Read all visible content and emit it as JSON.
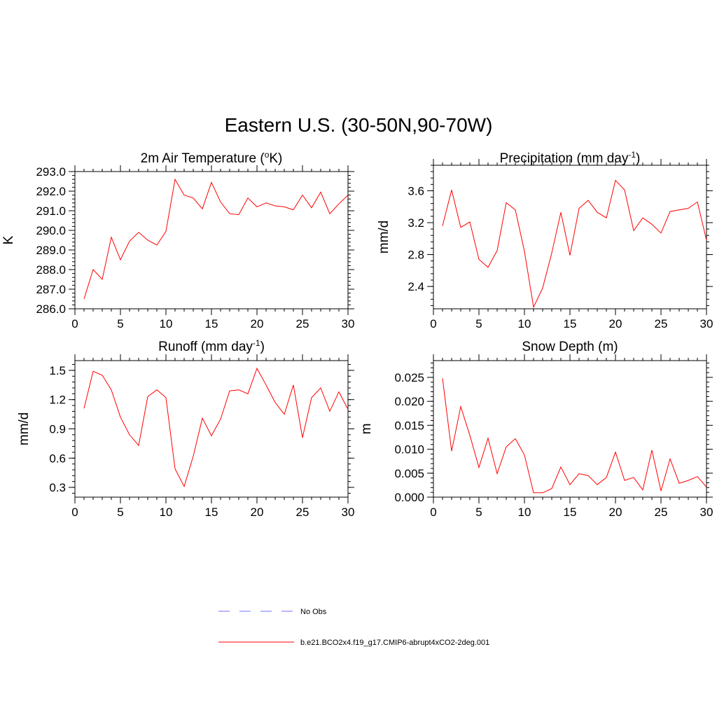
{
  "title": "Eastern U.S. (30-50N,90-70W)",
  "colors": {
    "model": "#ff0000",
    "obs": "#a0a0ff",
    "axis": "#000000"
  },
  "legend": {
    "entries": [
      {
        "label": "No Obs",
        "style": "dashed",
        "color": "#a0a0ff"
      },
      {
        "label": "b.e21.BCO2x4.f19_g17.CMIP6-abrupt4xCO2-2deg.001",
        "style": "solid",
        "color": "#ff0000"
      }
    ]
  },
  "chart_data": [
    {
      "type": "line",
      "title": "2m Air Temperature (°K)",
      "title_parts": {
        "pre": "2m Air Temperature (",
        "sup": "o",
        "post": "K)"
      },
      "ylabel": "K",
      "xlim": [
        0,
        30
      ],
      "ylim": [
        286,
        293
      ],
      "xticks": [
        0,
        5,
        10,
        15,
        20,
        25,
        30
      ],
      "yticks": [
        286,
        287,
        288,
        289,
        290,
        291,
        292,
        293
      ],
      "ytick_labels": [
        "286.0",
        "287.0",
        "288.0",
        "289.0",
        "290.0",
        "291.0",
        "292.0",
        "293.0"
      ],
      "series": [
        {
          "x": [
            1,
            2,
            3,
            4,
            5,
            6,
            7,
            8,
            9,
            10,
            11,
            12,
            13,
            14,
            15,
            16,
            17,
            18,
            19,
            20,
            21,
            22,
            23,
            24,
            25,
            26,
            27,
            28,
            29,
            30
          ],
          "values": [
            286.5,
            288.0,
            287.5,
            289.65,
            288.5,
            289.45,
            289.9,
            289.5,
            289.25,
            289.95,
            292.6,
            291.8,
            291.65,
            291.1,
            292.45,
            291.45,
            290.85,
            290.8,
            291.65,
            291.2,
            291.4,
            291.25,
            291.2,
            291.05,
            291.8,
            291.15,
            291.95,
            290.85,
            291.35,
            291.8
          ]
        }
      ]
    },
    {
      "type": "line",
      "title": "Precipitation (mm day-1)",
      "title_parts": {
        "pre": "Precipitation (mm day",
        "sup": "-1",
        "post": ")"
      },
      "ylabel": "mm/d",
      "xlim": [
        0,
        30
      ],
      "ylim": [
        2.12,
        3.92
      ],
      "xticks": [
        0,
        5,
        10,
        15,
        20,
        25,
        30
      ],
      "yticks": [
        2.4,
        2.8,
        3.2,
        3.6
      ],
      "ytick_labels": [
        "2.4",
        "2.8",
        "3.2",
        "3.6"
      ],
      "series": [
        {
          "x": [
            1,
            2,
            3,
            4,
            5,
            6,
            7,
            8,
            9,
            10,
            11,
            12,
            13,
            14,
            15,
            16,
            17,
            18,
            19,
            20,
            21,
            22,
            23,
            24,
            25,
            26,
            27,
            28,
            29,
            30
          ],
          "values": [
            3.16,
            3.61,
            3.14,
            3.21,
            2.74,
            2.64,
            2.85,
            3.45,
            3.36,
            2.84,
            2.14,
            2.38,
            2.82,
            3.33,
            2.79,
            3.38,
            3.48,
            3.33,
            3.26,
            3.73,
            3.61,
            3.1,
            3.26,
            3.18,
            3.07,
            3.34,
            3.36,
            3.38,
            3.46,
            2.98
          ]
        }
      ]
    },
    {
      "type": "line",
      "title": "Runoff (mm day-1)",
      "title_parts": {
        "pre": "Runoff (mm day",
        "sup": "-1",
        "post": ")"
      },
      "ylabel": "mm/d",
      "xlim": [
        0,
        30
      ],
      "ylim": [
        0.2,
        1.6
      ],
      "xticks": [
        0,
        5,
        10,
        15,
        20,
        25,
        30
      ],
      "yticks": [
        0.3,
        0.6,
        0.9,
        1.2,
        1.5
      ],
      "ytick_labels": [
        "0.3",
        "0.6",
        "0.9",
        "1.2",
        "1.5"
      ],
      "series": [
        {
          "x": [
            1,
            2,
            3,
            4,
            5,
            6,
            7,
            8,
            9,
            10,
            11,
            12,
            13,
            14,
            15,
            16,
            17,
            18,
            19,
            20,
            21,
            22,
            23,
            24,
            25,
            26,
            27,
            28,
            29,
            30
          ],
          "values": [
            1.11,
            1.49,
            1.45,
            1.3,
            1.02,
            0.84,
            0.73,
            1.23,
            1.3,
            1.22,
            0.49,
            0.31,
            0.62,
            1.01,
            0.83,
            1.0,
            1.29,
            1.3,
            1.26,
            1.52,
            1.35,
            1.17,
            1.05,
            1.35,
            0.81,
            1.22,
            1.32,
            1.08,
            1.28,
            1.1
          ]
        }
      ]
    },
    {
      "type": "line",
      "title": "Snow Depth (m)",
      "title_parts": {
        "pre": "Snow Depth (m)",
        "sup": "",
        "post": ""
      },
      "ylabel": "m",
      "xlim": [
        0,
        30
      ],
      "ylim": [
        0,
        0.0285
      ],
      "xticks": [
        0,
        5,
        10,
        15,
        20,
        25,
        30
      ],
      "yticks": [
        0,
        0.005,
        0.01,
        0.015,
        0.02,
        0.025
      ],
      "ytick_labels": [
        "0.000",
        "0.005",
        "0.010",
        "0.015",
        "0.020",
        "0.025"
      ],
      "series": [
        {
          "x": [
            1,
            2,
            3,
            4,
            5,
            6,
            7,
            8,
            9,
            10,
            11,
            12,
            13,
            14,
            15,
            16,
            17,
            18,
            19,
            20,
            21,
            22,
            23,
            24,
            25,
            26,
            27,
            28,
            29,
            30
          ],
          "values": [
            0.0248,
            0.0096,
            0.0189,
            0.0129,
            0.0062,
            0.0123,
            0.0049,
            0.0105,
            0.0122,
            0.0088,
            0.0009,
            0.0009,
            0.0018,
            0.0063,
            0.0026,
            0.0049,
            0.0045,
            0.0026,
            0.0041,
            0.0094,
            0.0035,
            0.0041,
            0.0015,
            0.0098,
            0.0013,
            0.008,
            0.0029,
            0.0035,
            0.0043,
            0.0021
          ]
        }
      ]
    }
  ]
}
